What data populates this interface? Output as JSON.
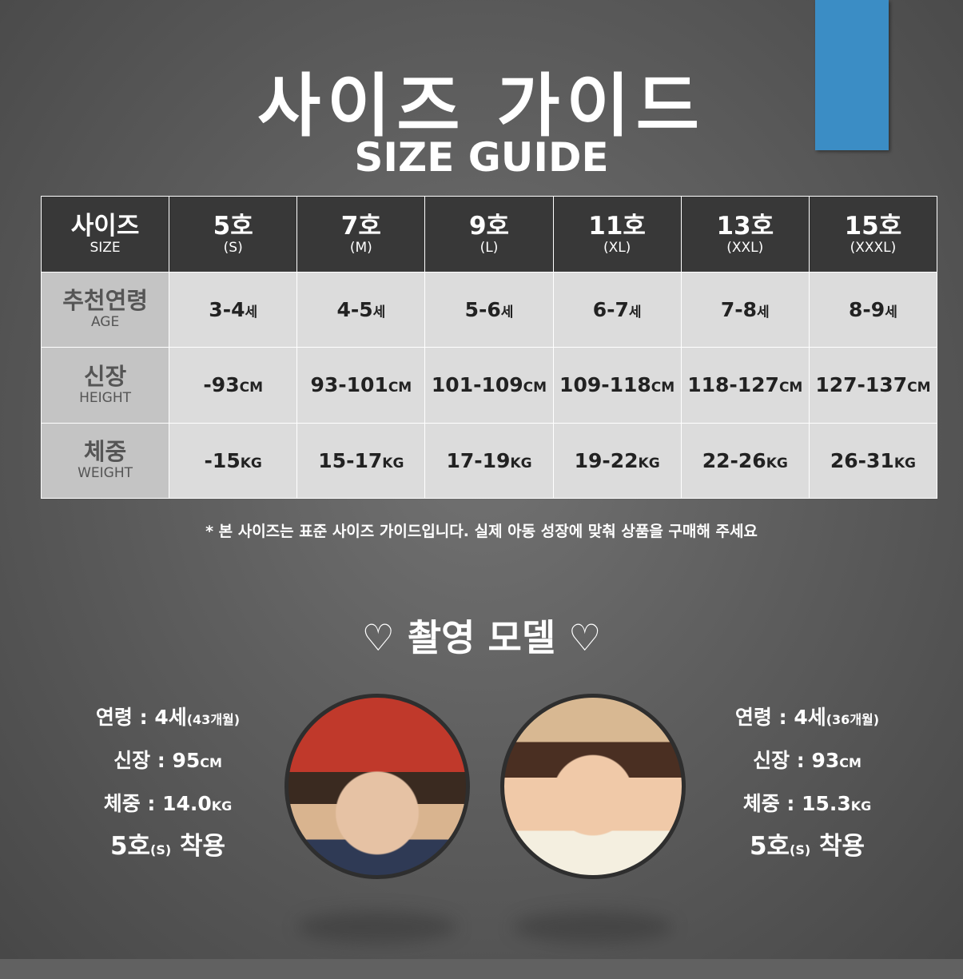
{
  "title": "사이즈 가이드",
  "subtitle": "SIZE GUIDE",
  "accent_color": "#3b8dc5",
  "table": {
    "header": {
      "label": "사이즈",
      "sub": "SIZE"
    },
    "sizes": [
      {
        "n": "5호",
        "c": "(S)"
      },
      {
        "n": "7호",
        "c": "(M)"
      },
      {
        "n": "9호",
        "c": "(L)"
      },
      {
        "n": "11호",
        "c": "(XL)"
      },
      {
        "n": "13호",
        "c": "(XXL)"
      },
      {
        "n": "15호",
        "c": "(XXXL)"
      }
    ],
    "rows": [
      {
        "label": "추천연령",
        "sub": "AGE",
        "unit": "세",
        "values": [
          "3-4",
          "4-5",
          "5-6",
          "6-7",
          "7-8",
          "8-9"
        ]
      },
      {
        "label": "신장",
        "sub": "HEIGHT",
        "unit": "CM",
        "values": [
          "-93",
          "93-101",
          "101-109",
          "109-118",
          "118-127",
          "127-137"
        ]
      },
      {
        "label": "체중",
        "sub": "WEIGHT",
        "unit": "KG",
        "values": [
          "-15",
          "15-17",
          "17-19",
          "19-22",
          "22-26",
          "26-31"
        ]
      }
    ]
  },
  "note": "* 본 사이즈는 표준 사이즈 가이드입니다. 실제 아동 성장에 맞춰 상품을 구매해 주세요",
  "models_title": "♡ 촬영 모델 ♡",
  "models": [
    {
      "age": "연령 : 4세",
      "months": "(43개월)",
      "height": "신장 : 95",
      "height_unit": "CM",
      "weight": "체중 : 14.0",
      "weight_unit": "KG",
      "wear": "5호",
      "wear_size": "(S)",
      "wear_label": " 착용"
    },
    {
      "age": "연령 : 4세",
      "months": "(36개월)",
      "height": "신장 : 93",
      "height_unit": "CM",
      "weight": "체중 : 15.3",
      "weight_unit": "KG",
      "wear": "5호",
      "wear_size": "(S)",
      "wear_label": " 착용"
    }
  ]
}
